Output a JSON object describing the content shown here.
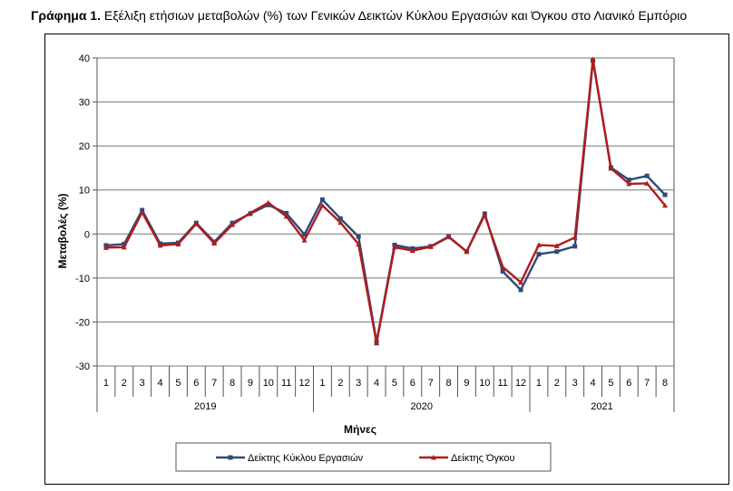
{
  "caption": {
    "prefix": "Γράφημα 1.",
    "text": " Εξέλιξη ετήσιων μεταβολών (%) των Γενικών Δεικτών Κύκλου Εργασιών και Όγκου στο Λιανικό Εμπόριο"
  },
  "chart_data": {
    "type": "line",
    "title": "Εξέλιξη ετήσιων μεταβολών (%) των Γενικών Δεικτών Κύκλου Εργασιών και Όγκου στο Λιανικό Εμπόριο",
    "xlabel": "Μήνες",
    "ylabel": "Μεταβολές (%)",
    "ylim": [
      -30,
      40
    ],
    "yticks": [
      -30,
      -20,
      -10,
      0,
      10,
      20,
      30,
      40
    ],
    "grid": true,
    "legend_position": "bottom",
    "categories": [
      "1",
      "2",
      "3",
      "4",
      "5",
      "6",
      "7",
      "8",
      "9",
      "10",
      "11",
      "12",
      "1",
      "2",
      "3",
      "4",
      "5",
      "6",
      "7",
      "8",
      "9",
      "10",
      "11",
      "12",
      "1",
      "2",
      "3",
      "4",
      "5",
      "6",
      "7",
      "8"
    ],
    "year_groups": [
      {
        "label": "2019",
        "count": 12
      },
      {
        "label": "2020",
        "count": 12
      },
      {
        "label": "2021",
        "count": 8
      }
    ],
    "series": [
      {
        "name": "Δείκτης Κύκλου Εργασιών",
        "color": "#2e4a7a",
        "marker": "square",
        "values": [
          -2.6,
          -2.3,
          5.4,
          -2.2,
          -2.0,
          2.5,
          -1.8,
          2.5,
          4.6,
          6.6,
          4.7,
          -0.1,
          7.8,
          3.5,
          -0.6,
          -24.5,
          -2.5,
          -3.3,
          -2.8,
          -0.6,
          -4.0,
          4.6,
          -8.5,
          -12.7,
          -4.6,
          -4.0,
          -2.8,
          39.4,
          15.1,
          12.3,
          13.2,
          8.9
        ]
      },
      {
        "name": "Δείκτης Όγκου",
        "color": "#b01c1c",
        "marker": "triangle",
        "values": [
          -3.1,
          -3.0,
          4.9,
          -2.6,
          -2.3,
          2.3,
          -2.1,
          2.1,
          4.8,
          7.1,
          4.0,
          -1.4,
          6.5,
          2.6,
          -2.3,
          -24.8,
          -3.0,
          -3.8,
          -2.9,
          -0.7,
          -4.0,
          4.3,
          -7.5,
          -11.0,
          -2.5,
          -2.7,
          -0.8,
          39.7,
          14.9,
          11.4,
          11.5,
          6.5
        ]
      }
    ]
  }
}
